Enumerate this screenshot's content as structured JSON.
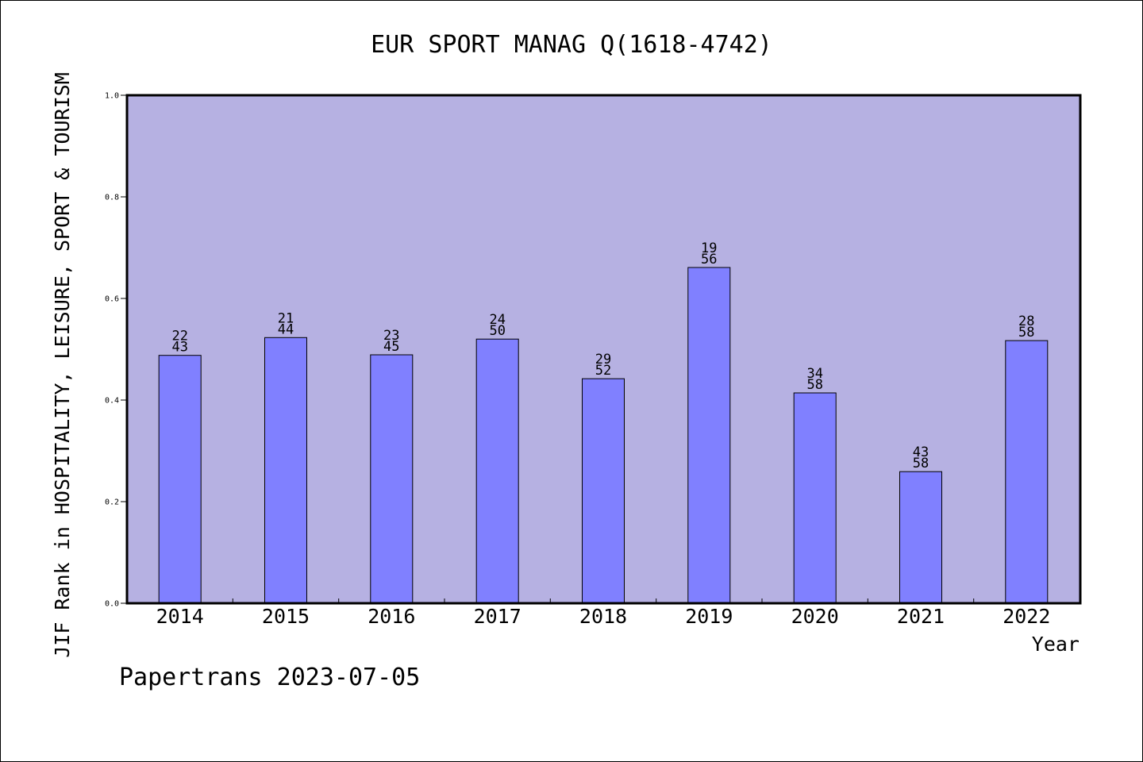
{
  "colors": {
    "plot_background": "#b6b1e2",
    "bar_fill": "#8080ff",
    "axis": "#000000",
    "text": "#000000",
    "page_background": "#ffffff"
  },
  "footer": {
    "credit": "Papertrans 2023-07-05"
  },
  "chart_data": {
    "type": "bar",
    "title": "EUR SPORT MANAG Q(1618-4742)",
    "xlabel": "Year",
    "ylabel": "JIF Rank in HOSPITALITY, LEISURE, SPORT & TOURISM",
    "ylim": [
      0,
      1.0
    ],
    "yticks": [
      "0.0",
      "0.2",
      "0.4",
      "0.6",
      "0.8",
      "1.0"
    ],
    "grid": false,
    "categories": [
      "2014",
      "2015",
      "2016",
      "2017",
      "2018",
      "2019",
      "2020",
      "2021",
      "2022"
    ],
    "values": [
      0.488,
      0.523,
      0.489,
      0.52,
      0.442,
      0.661,
      0.414,
      0.259,
      0.517
    ],
    "rank_labels": [
      [
        "22",
        "43"
      ],
      [
        "21",
        "44"
      ],
      [
        "23",
        "45"
      ],
      [
        "24",
        "50"
      ],
      [
        "29",
        "52"
      ],
      [
        "19",
        "56"
      ],
      [
        "34",
        "58"
      ],
      [
        "43",
        "58"
      ],
      [
        "28",
        "58"
      ]
    ]
  }
}
